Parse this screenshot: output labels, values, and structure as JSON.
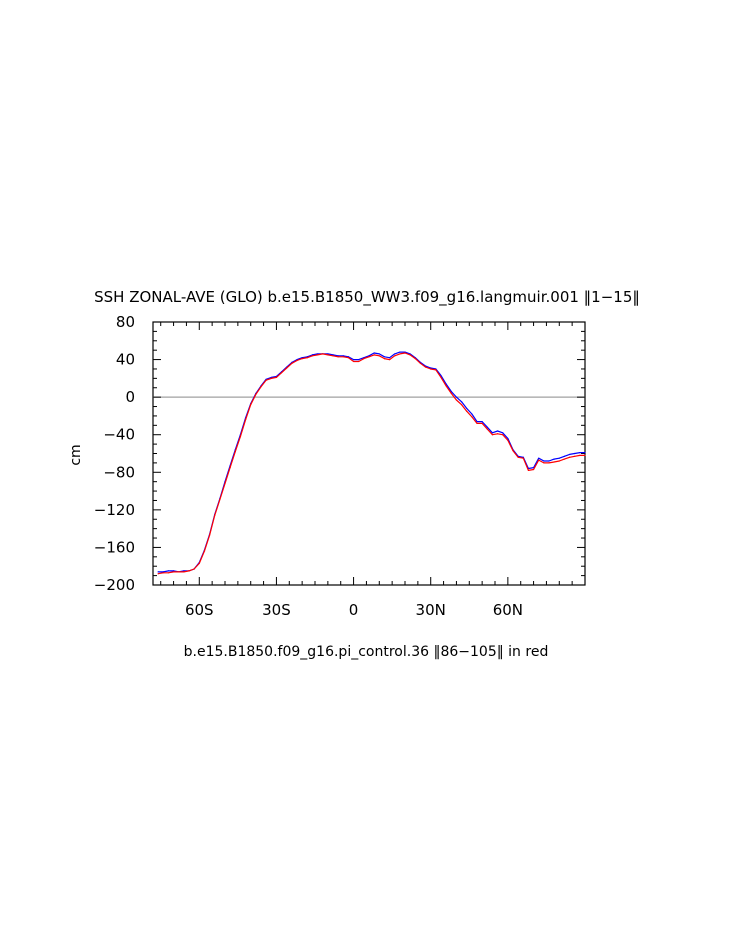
{
  "chart_data": {
    "type": "line",
    "title": "SSH ZONAL-AVE (GLO) b.e15.B1850_WW3.f09_g16.langmuir.001 ‖1−15‖",
    "subtitle": "b.e15.B1850.f09_g16.pi_control.36 ‖86−105‖ in red",
    "ylabel": "cm",
    "xlabel": "",
    "xlim": [
      -78,
      90
    ],
    "ylim": [
      -200,
      80
    ],
    "x_ticks": [
      {
        "value": -60,
        "label": "60S"
      },
      {
        "value": -30,
        "label": "30S"
      },
      {
        "value": 0,
        "label": "0"
      },
      {
        "value": 30,
        "label": "30N"
      },
      {
        "value": 60,
        "label": "60N"
      }
    ],
    "y_ticks": [
      {
        "value": 80,
        "label": "80"
      },
      {
        "value": 40,
        "label": "40"
      },
      {
        "value": 0,
        "label": "0"
      },
      {
        "value": -40,
        "label": "−40"
      },
      {
        "value": -80,
        "label": "−80"
      },
      {
        "value": -120,
        "label": "−120"
      },
      {
        "value": -160,
        "label": "−160"
      },
      {
        "value": -200,
        "label": "−200"
      }
    ],
    "reference_line": {
      "y": 0,
      "color": "#a0a0a0"
    },
    "grid": false,
    "series": [
      {
        "color": "#0000ff",
        "x": [
          -76,
          -74,
          -72,
          -70,
          -68,
          -66,
          -64,
          -62,
          -60,
          -58,
          -56,
          -54,
          -52,
          -50,
          -48,
          -46,
          -44,
          -42,
          -40,
          -38,
          -36,
          -34,
          -32,
          -30,
          -28,
          -26,
          -24,
          -22,
          -20,
          -18,
          -16,
          -14,
          -12,
          -10,
          -8,
          -6,
          -4,
          -2,
          0,
          2,
          4,
          6,
          8,
          10,
          12,
          14,
          16,
          18,
          20,
          22,
          24,
          26,
          28,
          30,
          32,
          34,
          36,
          38,
          40,
          42,
          44,
          46,
          48,
          50,
          52,
          54,
          56,
          58,
          60,
          62,
          64,
          66,
          68,
          70,
          72,
          74,
          76,
          78,
          80,
          82,
          84,
          86,
          88,
          90
        ],
        "values": [
          -186,
          -186,
          -185,
          -185,
          -186,
          -185,
          -185,
          -183,
          -176,
          -163,
          -146,
          -125,
          -108,
          -90,
          -73,
          -56,
          -40,
          -22,
          -7,
          4,
          12,
          19,
          21,
          22,
          27,
          32,
          37,
          40,
          42,
          43,
          45,
          46,
          46,
          46,
          45,
          44,
          44,
          43,
          40,
          40,
          42,
          44,
          47,
          46,
          43,
          42,
          46,
          48,
          48,
          46,
          42,
          37,
          33,
          31,
          30,
          23,
          14,
          6,
          0,
          -5,
          -12,
          -18,
          -26,
          -26,
          -32,
          -38,
          -36,
          -38,
          -44,
          -56,
          -63,
          -64,
          -76,
          -75,
          -65,
          -68,
          -68,
          -66,
          -65,
          -63,
          -61,
          -60,
          -59,
          -59
        ]
      },
      {
        "color": "#ff0000",
        "x": [
          -76,
          -74,
          -72,
          -70,
          -68,
          -66,
          -64,
          -62,
          -60,
          -58,
          -56,
          -54,
          -52,
          -50,
          -48,
          -46,
          -44,
          -42,
          -40,
          -38,
          -36,
          -34,
          -32,
          -30,
          -28,
          -26,
          -24,
          -22,
          -20,
          -18,
          -16,
          -14,
          -12,
          -10,
          -8,
          -6,
          -4,
          -2,
          0,
          2,
          4,
          6,
          8,
          10,
          12,
          14,
          16,
          18,
          20,
          22,
          24,
          26,
          28,
          30,
          32,
          34,
          36,
          38,
          40,
          42,
          44,
          46,
          48,
          50,
          52,
          54,
          56,
          58,
          60,
          62,
          64,
          66,
          68,
          70,
          72,
          74,
          76,
          78,
          80,
          82,
          84,
          86,
          88,
          90
        ],
        "values": [
          -188,
          -187,
          -187,
          -186,
          -186,
          -186,
          -185,
          -183,
          -177,
          -164,
          -147,
          -126,
          -109,
          -92,
          -75,
          -58,
          -42,
          -24,
          -8,
          3,
          11,
          18,
          20,
          21,
          26,
          31,
          36,
          39,
          41,
          42,
          44,
          45,
          46,
          45,
          44,
          43,
          43,
          42,
          38,
          38,
          41,
          43,
          45,
          44,
          41,
          40,
          44,
          46,
          47,
          45,
          41,
          36,
          32,
          30,
          29,
          21,
          12,
          4,
          -3,
          -8,
          -15,
          -21,
          -28,
          -28,
          -34,
          -40,
          -39,
          -40,
          -46,
          -57,
          -64,
          -65,
          -78,
          -77,
          -67,
          -70,
          -70,
          -69,
          -68,
          -66,
          -64,
          -63,
          -62,
          -62
        ]
      }
    ]
  }
}
